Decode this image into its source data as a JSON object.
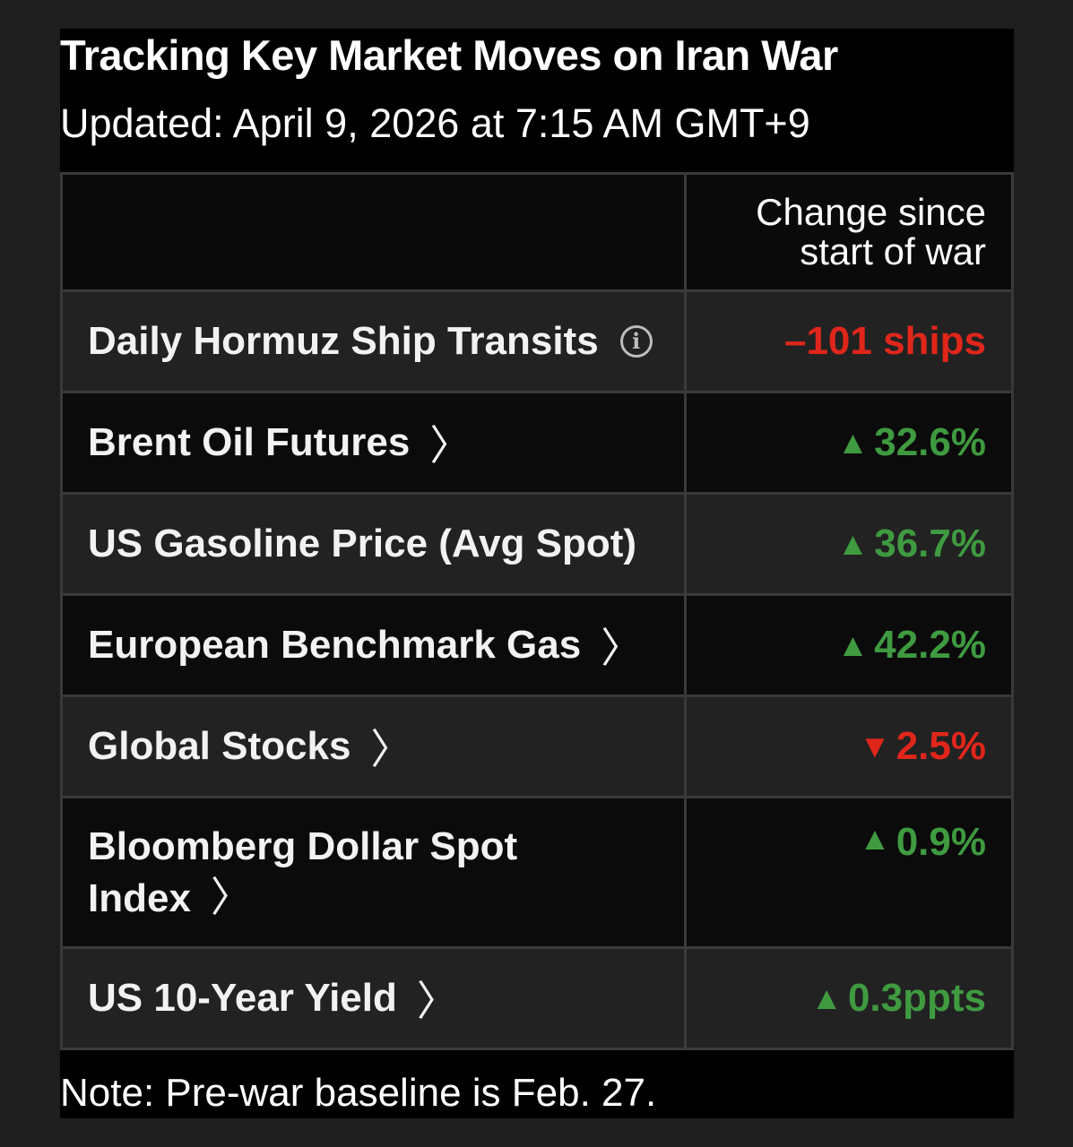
{
  "title": "Tracking Key Market Moves on Iran War",
  "updated": "Updated: April 9, 2026 at 7:15 AM GMT+9",
  "table": {
    "header_label": "",
    "header_value_line1": "Change since",
    "header_value_line2": "start of war",
    "rows": [
      {
        "label": "Daily Hormuz Ship Transits",
        "value": "–101 ships",
        "direction": "negative",
        "icon": "info-icon"
      },
      {
        "label": "Brent Oil Futures",
        "value": "32.6%",
        "direction": "up",
        "icon": "chevron-right-icon"
      },
      {
        "label": "US Gasoline Price (Avg Spot)",
        "value": "36.7%",
        "direction": "up"
      },
      {
        "label": "European Benchmark Gas",
        "value": "42.2%",
        "direction": "up",
        "icon": "chevron-right-icon"
      },
      {
        "label": "Global Stocks",
        "value": "2.5%",
        "direction": "down",
        "icon": "chevron-right-icon"
      },
      {
        "label_line1": "Bloomberg Dollar Spot",
        "label_line2": "Index",
        "value": "0.9%",
        "direction": "up",
        "icon": "chevron-right-icon"
      },
      {
        "label": "US 10-Year Yield",
        "value": "0.3ppts",
        "direction": "up",
        "icon": "chevron-right-icon"
      }
    ]
  },
  "note": "Note: Pre-war baseline is Feb. 27.",
  "glyphs": {
    "up": "▲",
    "down": "▼",
    "chevron": "〉",
    "info": "i"
  },
  "colors": {
    "background": "#1e1e1e",
    "card": "#000000",
    "up": "#3f9a40",
    "down": "#e0261b",
    "row_alt": "#222222",
    "border": "#3a3a3a"
  }
}
